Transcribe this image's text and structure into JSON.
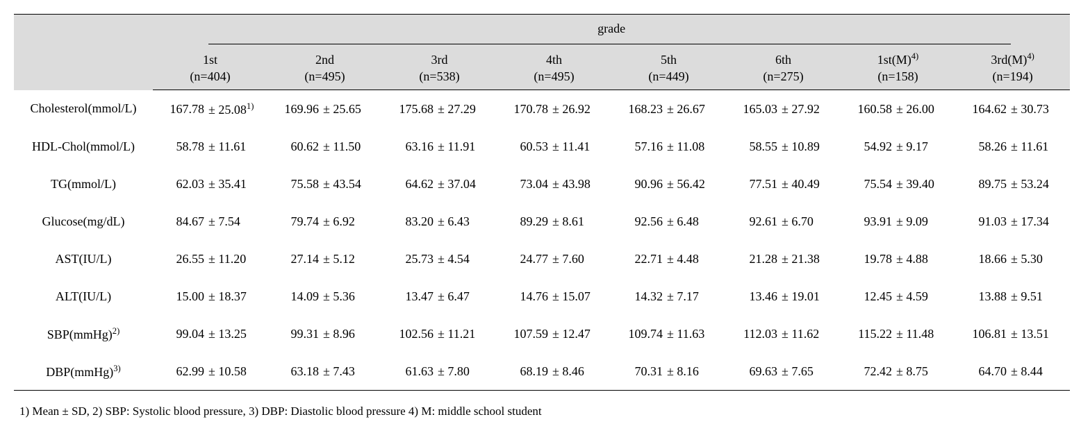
{
  "type": "table",
  "background_color": "#ffffff",
  "header_bg": "#dcdcdc",
  "text_color": "#000000",
  "font_family": "Times New Roman",
  "body_fontsize": 18,
  "footnote_fontsize": 17,
  "header": {
    "span_label": "grade",
    "columns": [
      {
        "label": "1st",
        "n": "(n=404)",
        "sup": ""
      },
      {
        "label": "2nd",
        "n": "(n=495)",
        "sup": ""
      },
      {
        "label": "3rd",
        "n": "(n=538)",
        "sup": ""
      },
      {
        "label": "4th",
        "n": "(n=495)",
        "sup": ""
      },
      {
        "label": "5th",
        "n": "(n=449)",
        "sup": ""
      },
      {
        "label": "6th",
        "n": "(n=275)",
        "sup": ""
      },
      {
        "label": "1st(M)",
        "n": "(n=158)",
        "sup": "4)"
      },
      {
        "label": "3rd(M)",
        "n": "(n=194)",
        "sup": "4)"
      }
    ]
  },
  "rows": [
    {
      "label": "Cholesterol(mmol/L)",
      "sup": "",
      "vals": [
        "167.78",
        "169.96",
        "175.68",
        "170.78",
        "168.23",
        "165.03",
        "160.58",
        "164.62"
      ],
      "sds": [
        "± 25.08",
        "± 25.65",
        "± 27.29",
        "± 26.92",
        "± 26.67",
        "± 27.92",
        "± 26.00",
        "± 30.73"
      ],
      "cell_sup": [
        "1)",
        "",
        "",
        "",
        "",
        "",
        "",
        ""
      ]
    },
    {
      "label": "HDL-Chol(mmol/L)",
      "sup": "",
      "vals": [
        "58.78",
        "60.62",
        "63.16",
        "60.53",
        "57.16",
        "58.55",
        "54.92",
        "58.26"
      ],
      "sds": [
        "± 11.61",
        "± 11.50",
        "± 11.91",
        "± 11.41",
        "± 11.08",
        "± 10.89",
        "± 9.17",
        "± 11.61"
      ],
      "cell_sup": [
        "",
        "",
        "",
        "",
        "",
        "",
        "",
        ""
      ]
    },
    {
      "label": "TG(mmol/L)",
      "sup": "",
      "vals": [
        "62.03",
        "75.58",
        "64.62",
        "73.04",
        "90.96",
        "77.51",
        "75.54",
        "89.75"
      ],
      "sds": [
        "± 35.41",
        "± 43.54",
        "± 37.04",
        "± 43.98",
        "± 56.42",
        "± 40.49",
        "± 39.40",
        "± 53.24"
      ],
      "cell_sup": [
        "",
        "",
        "",
        "",
        "",
        "",
        "",
        ""
      ]
    },
    {
      "label": "Glucose(mg/dL)",
      "sup": "",
      "vals": [
        "84.67",
        "79.74",
        "83.20",
        "89.29",
        "92.56",
        "92.61",
        "93.91",
        "91.03"
      ],
      "sds": [
        "± 7.54",
        "± 6.92",
        "± 6.43",
        "± 8.61",
        "± 6.48",
        "± 6.70",
        "± 9.09",
        "± 17.34"
      ],
      "cell_sup": [
        "",
        "",
        "",
        "",
        "",
        "",
        "",
        ""
      ]
    },
    {
      "label": "AST(IU/L)",
      "sup": "",
      "vals": [
        "26.55",
        "27.14",
        "25.73",
        "24.77",
        "22.71",
        "21.28",
        "19.78",
        "18.66"
      ],
      "sds": [
        "± 11.20",
        "± 5.12",
        "± 4.54",
        "± 7.60",
        "± 4.48",
        "± 21.38",
        "± 4.88",
        "± 5.30"
      ],
      "cell_sup": [
        "",
        "",
        "",
        "",
        "",
        "",
        "",
        ""
      ]
    },
    {
      "label": "ALT(IU/L)",
      "sup": "",
      "vals": [
        "15.00",
        "14.09",
        "13.47",
        "14.76",
        "14.32",
        "13.46",
        "12.45",
        "13.88"
      ],
      "sds": [
        "± 18.37",
        "± 5.36",
        "± 6.47",
        "± 15.07",
        "± 7.17",
        "± 19.01",
        "± 4.59",
        "± 9.51"
      ],
      "cell_sup": [
        "",
        "",
        "",
        "",
        "",
        "",
        "",
        ""
      ]
    },
    {
      "label": "SBP(mmHg)",
      "sup": "2)",
      "vals": [
        "99.04",
        "99.31",
        "102.56",
        "107.59",
        "109.74",
        "112.03",
        "115.22",
        "106.81"
      ],
      "sds": [
        "± 13.25",
        "± 8.96",
        "± 11.21",
        "± 12.47",
        "± 11.63",
        "± 11.62",
        "± 11.48",
        "± 13.51"
      ],
      "cell_sup": [
        "",
        "",
        "",
        "",
        "",
        "",
        "",
        ""
      ]
    },
    {
      "label": "DBP(mmHg)",
      "sup": "3)",
      "vals": [
        "62.99",
        "63.18",
        "61.63",
        "68.19",
        "70.31",
        "69.63",
        "72.42",
        "64.70"
      ],
      "sds": [
        "± 10.58",
        "± 7.43",
        "± 7.80",
        "± 8.46",
        "± 8.16",
        "± 7.65",
        "± 8.75",
        "± 8.44"
      ],
      "cell_sup": [
        "",
        "",
        "",
        "",
        "",
        "",
        "",
        ""
      ]
    }
  ],
  "footnote": "1) Mean ± SD, 2) SBP: Systolic blood pressure, 3) DBP: Diastolic blood pressure 4) M: middle school student"
}
